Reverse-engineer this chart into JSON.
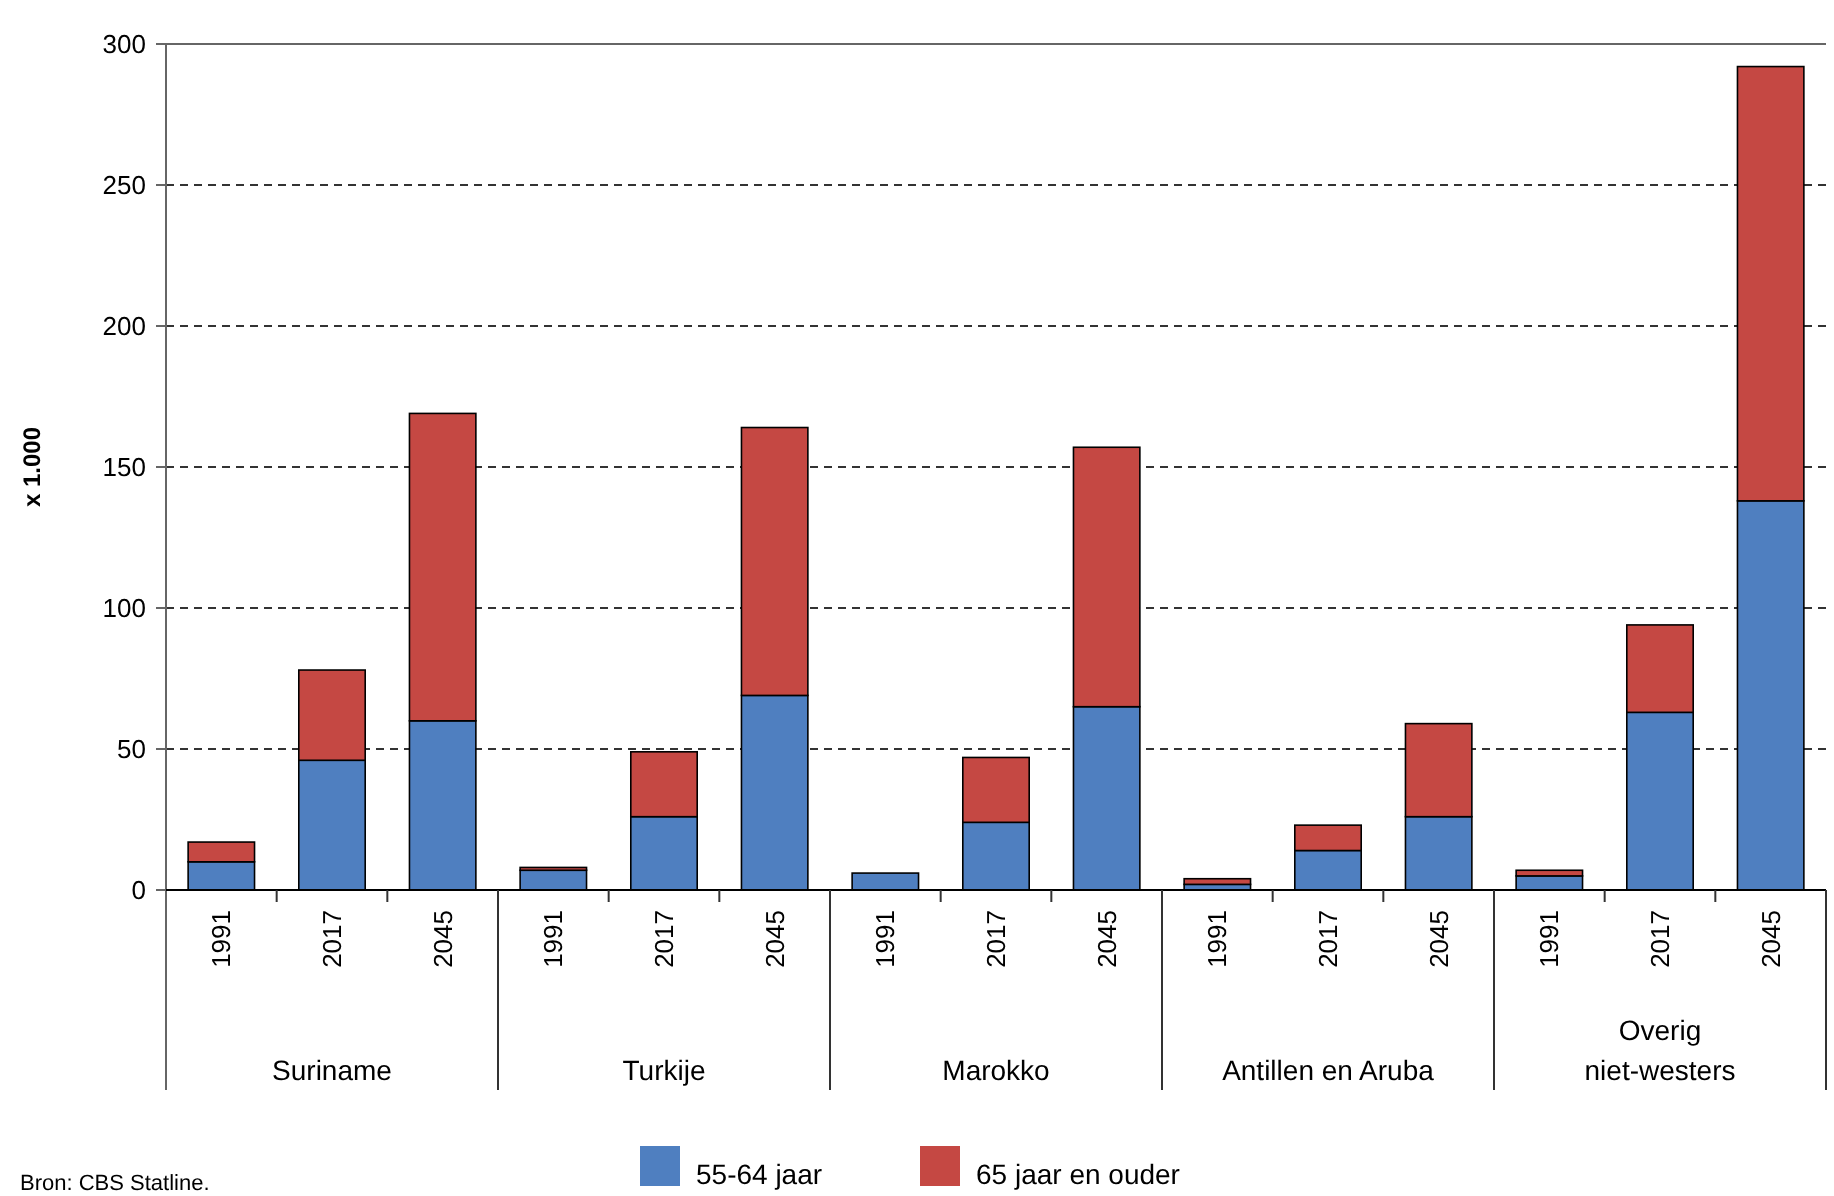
{
  "chart_data": {
    "type": "bar",
    "stacked": true,
    "ylabel": "x 1.000",
    "categories": [
      "1991",
      "2017",
      "2045",
      "1991",
      "2017",
      "2045",
      "1991",
      "2017",
      "2045",
      "1991",
      "2017",
      "2045",
      "1991",
      "2017",
      "2045"
    ],
    "series": [
      {
        "name": "55-64 jaar",
        "color": "#4f7fc0",
        "values": [
          10,
          46,
          60,
          7,
          26,
          69,
          6,
          24,
          65,
          2,
          14,
          26,
          5,
          63,
          138
        ]
      },
      {
        "name": "65 jaar en ouder",
        "color": "#c54843",
        "values": [
          7,
          32,
          109,
          1,
          23,
          95,
          null,
          23,
          92,
          2,
          9,
          33,
          2,
          31,
          154
        ]
      }
    ],
    "ylim": [
      0,
      300
    ],
    "yticks": [
      0,
      50,
      100,
      150,
      200,
      250,
      300
    ],
    "grid": "y",
    "legend": "bottom",
    "annotations": [
      "Suriname",
      "Turkije",
      "Marokko",
      "Antillen en Aruba",
      "Overig\nniet-westers",
      "Bron: CBS Statline."
    ]
  }
}
